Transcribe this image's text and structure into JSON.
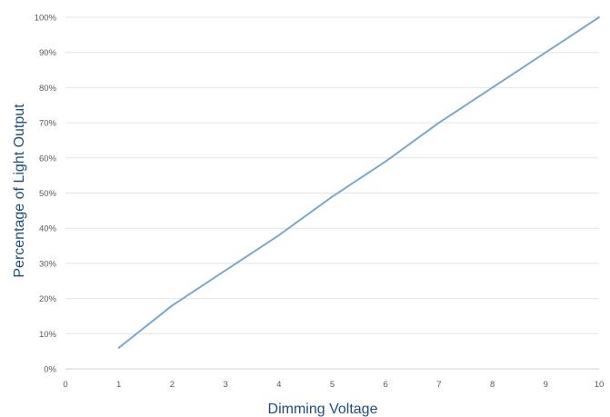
{
  "chart_data": {
    "type": "line",
    "title": "",
    "xlabel": "Dimming Voltage",
    "ylabel": "Percentage of Light Output",
    "xlim": [
      0,
      10
    ],
    "ylim": [
      0,
      100
    ],
    "x_ticks": [
      0,
      1,
      2,
      3,
      4,
      5,
      6,
      7,
      8,
      9,
      10
    ],
    "y_ticks": [
      0,
      10,
      20,
      30,
      40,
      50,
      60,
      70,
      80,
      90,
      100
    ],
    "x_tick_labels": [
      "0",
      "1",
      "2",
      "3",
      "4",
      "5",
      "6",
      "7",
      "8",
      "9",
      "10"
    ],
    "y_tick_labels": [
      "0%",
      "10%",
      "20%",
      "30%",
      "40%",
      "50%",
      "60%",
      "70%",
      "80%",
      "90%",
      "100%"
    ],
    "grid": "horizontal",
    "legend": "none",
    "series": [
      {
        "color": "#7ba7cc",
        "x": [
          1,
          2,
          3,
          4,
          5,
          6,
          7,
          8,
          9,
          10
        ],
        "y": [
          6,
          18,
          28,
          38,
          49,
          59,
          70,
          80,
          90,
          100
        ]
      }
    ]
  }
}
